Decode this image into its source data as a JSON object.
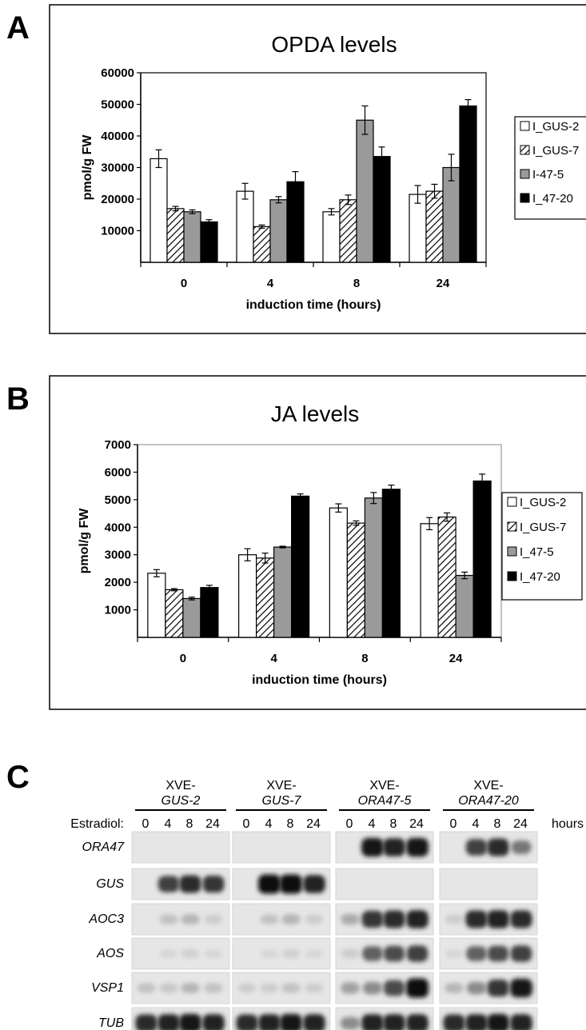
{
  "panels": {
    "a": "A",
    "b": "B",
    "c": "C"
  },
  "chart_data": [
    {
      "type": "bar",
      "title": "OPDA levels",
      "xlabel": "induction time (hours)",
      "ylabel": "pmol/g FW",
      "categories": [
        "0",
        "4",
        "8",
        "24"
      ],
      "ylim": [
        0,
        60000
      ],
      "yticks": [
        "10000",
        "20000",
        "30000",
        "40000",
        "50000",
        "60000"
      ],
      "grid": false,
      "legend_position": "right",
      "series": [
        {
          "name": "I_GUS-2",
          "values": [
            32800,
            22500,
            16000,
            21500
          ],
          "errors": [
            2800,
            2500,
            1000,
            2800
          ]
        },
        {
          "name": "I_GUS-7",
          "values": [
            17000,
            11300,
            19800,
            22500
          ],
          "errors": [
            700,
            500,
            1500,
            2200
          ]
        },
        {
          "name": "I-47-5",
          "values": [
            16000,
            19800,
            45000,
            30000
          ],
          "errors": [
            600,
            1000,
            4500,
            4200
          ]
        },
        {
          "name": "I_47-20",
          "values": [
            12800,
            25500,
            33500,
            49500
          ],
          "errors": [
            700,
            3200,
            3000,
            2000
          ]
        }
      ],
      "colors": {
        "fill": [
          "#ffffff",
          "hatch",
          "#9a9a9a",
          "#000000"
        ]
      }
    },
    {
      "type": "bar",
      "title": "JA levels",
      "xlabel": "induction time (hours)",
      "ylabel": "pmol/g FW",
      "categories": [
        "0",
        "4",
        "8",
        "24"
      ],
      "ylim": [
        0,
        7000
      ],
      "yticks": [
        "1000",
        "2000",
        "3000",
        "4000",
        "5000",
        "6000",
        "7000"
      ],
      "grid": false,
      "legend_position": "right",
      "series": [
        {
          "name": "I_GUS-2",
          "values": [
            2330,
            3000,
            4700,
            4130
          ],
          "errors": [
            130,
            220,
            150,
            220
          ]
        },
        {
          "name": "I_GUS-7",
          "values": [
            1730,
            2880,
            4150,
            4370
          ],
          "errors": [
            40,
            180,
            80,
            150
          ]
        },
        {
          "name": "I_47-5",
          "values": [
            1410,
            3280,
            5060,
            2250
          ],
          "errors": [
            50,
            30,
            200,
            120
          ]
        },
        {
          "name": "I_47-20",
          "values": [
            1810,
            5130,
            5380,
            5680
          ],
          "errors": [
            80,
            80,
            150,
            250
          ]
        }
      ],
      "colors": {
        "fill": [
          "#ffffff",
          "hatch",
          "#9a9a9a",
          "#000000"
        ]
      }
    }
  ],
  "blot": {
    "groups": [
      {
        "line1": "XVE-",
        "line2": "GUS-2"
      },
      {
        "line1": "XVE-",
        "line2": "GUS-7"
      },
      {
        "line1": "XVE-",
        "line2": "ORA47-5"
      },
      {
        "line1": "XVE-",
        "line2": "ORA47-20"
      }
    ],
    "row_label": "Estradiol:",
    "times": [
      "0",
      "4",
      "8",
      "24"
    ],
    "unit": "hours",
    "genes": [
      "ORA47",
      "GUS",
      "AOC3",
      "AOS",
      "VSP1",
      "TUB"
    ],
    "intensity": [
      [
        [
          0,
          0,
          0,
          0
        ],
        [
          0,
          0,
          0,
          0
        ],
        [
          0,
          0.95,
          0.9,
          0.95
        ],
        [
          0,
          0.75,
          0.85,
          0.5
        ]
      ],
      [
        [
          0,
          0.75,
          0.85,
          0.8
        ],
        [
          0,
          1.0,
          1.0,
          0.9
        ],
        [
          0,
          0,
          0,
          0
        ],
        [
          0,
          0,
          0,
          0
        ]
      ],
      [
        [
          0,
          0.15,
          0.2,
          0.1
        ],
        [
          0,
          0.15,
          0.2,
          0.1
        ],
        [
          0.25,
          0.8,
          0.85,
          0.9
        ],
        [
          0.1,
          0.85,
          0.9,
          0.85
        ]
      ],
      [
        [
          0,
          0.05,
          0.08,
          0.05
        ],
        [
          0,
          0.05,
          0.08,
          0.05
        ],
        [
          0.1,
          0.6,
          0.7,
          0.75
        ],
        [
          0.05,
          0.6,
          0.7,
          0.75
        ]
      ],
      [
        [
          0.15,
          0.12,
          0.2,
          0.15
        ],
        [
          0.1,
          0.1,
          0.15,
          0.1
        ],
        [
          0.3,
          0.4,
          0.7,
          1.0
        ],
        [
          0.2,
          0.4,
          0.8,
          0.95
        ]
      ],
      [
        [
          0.85,
          0.9,
          0.95,
          0.9
        ],
        [
          0.85,
          0.9,
          0.95,
          0.9
        ],
        [
          0.4,
          0.9,
          0.9,
          0.9
        ],
        [
          0.85,
          0.9,
          0.95,
          0.9
        ]
      ]
    ]
  }
}
